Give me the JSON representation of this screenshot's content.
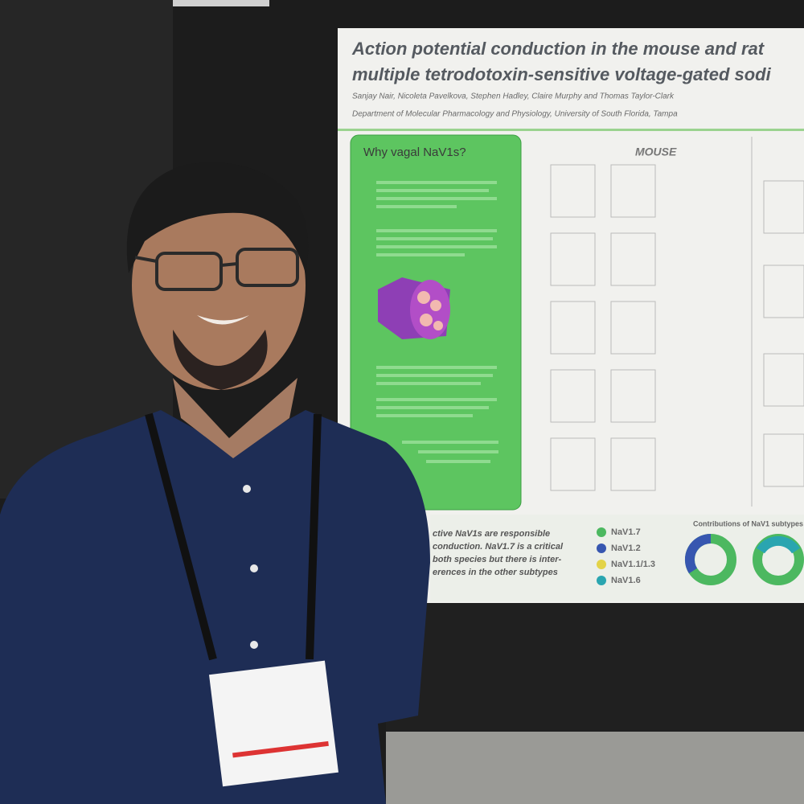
{
  "poster": {
    "title_lines": [
      "Action potential conduction in the mouse and rat",
      "multiple tetrodotoxin-sensitive voltage-gated sodi"
    ],
    "authors": "Sanjay Nair, Nicoleta Pavelkova, Stephen Hadley, Claire Murphy and Thomas Taylor-Clark",
    "affiliation": "Department of Molecular Pharmacology and Physiology, University of South Florida, Tampa",
    "panel_title": "Why vagal NaV1s?",
    "section_label": "MOUSE",
    "legend": [
      "NaV1.7",
      "NaV1.2",
      "NaV1.1/1.3",
      "NaV1.6"
    ],
    "donut_title": "Contributions of NaV1 subtypes",
    "conclusion_lines": [
      "ctive NaV1s are responsible",
      "conduction. NaV1.7 is a critical",
      "both species but there is inter-",
      "erences in the other subtypes"
    ]
  }
}
